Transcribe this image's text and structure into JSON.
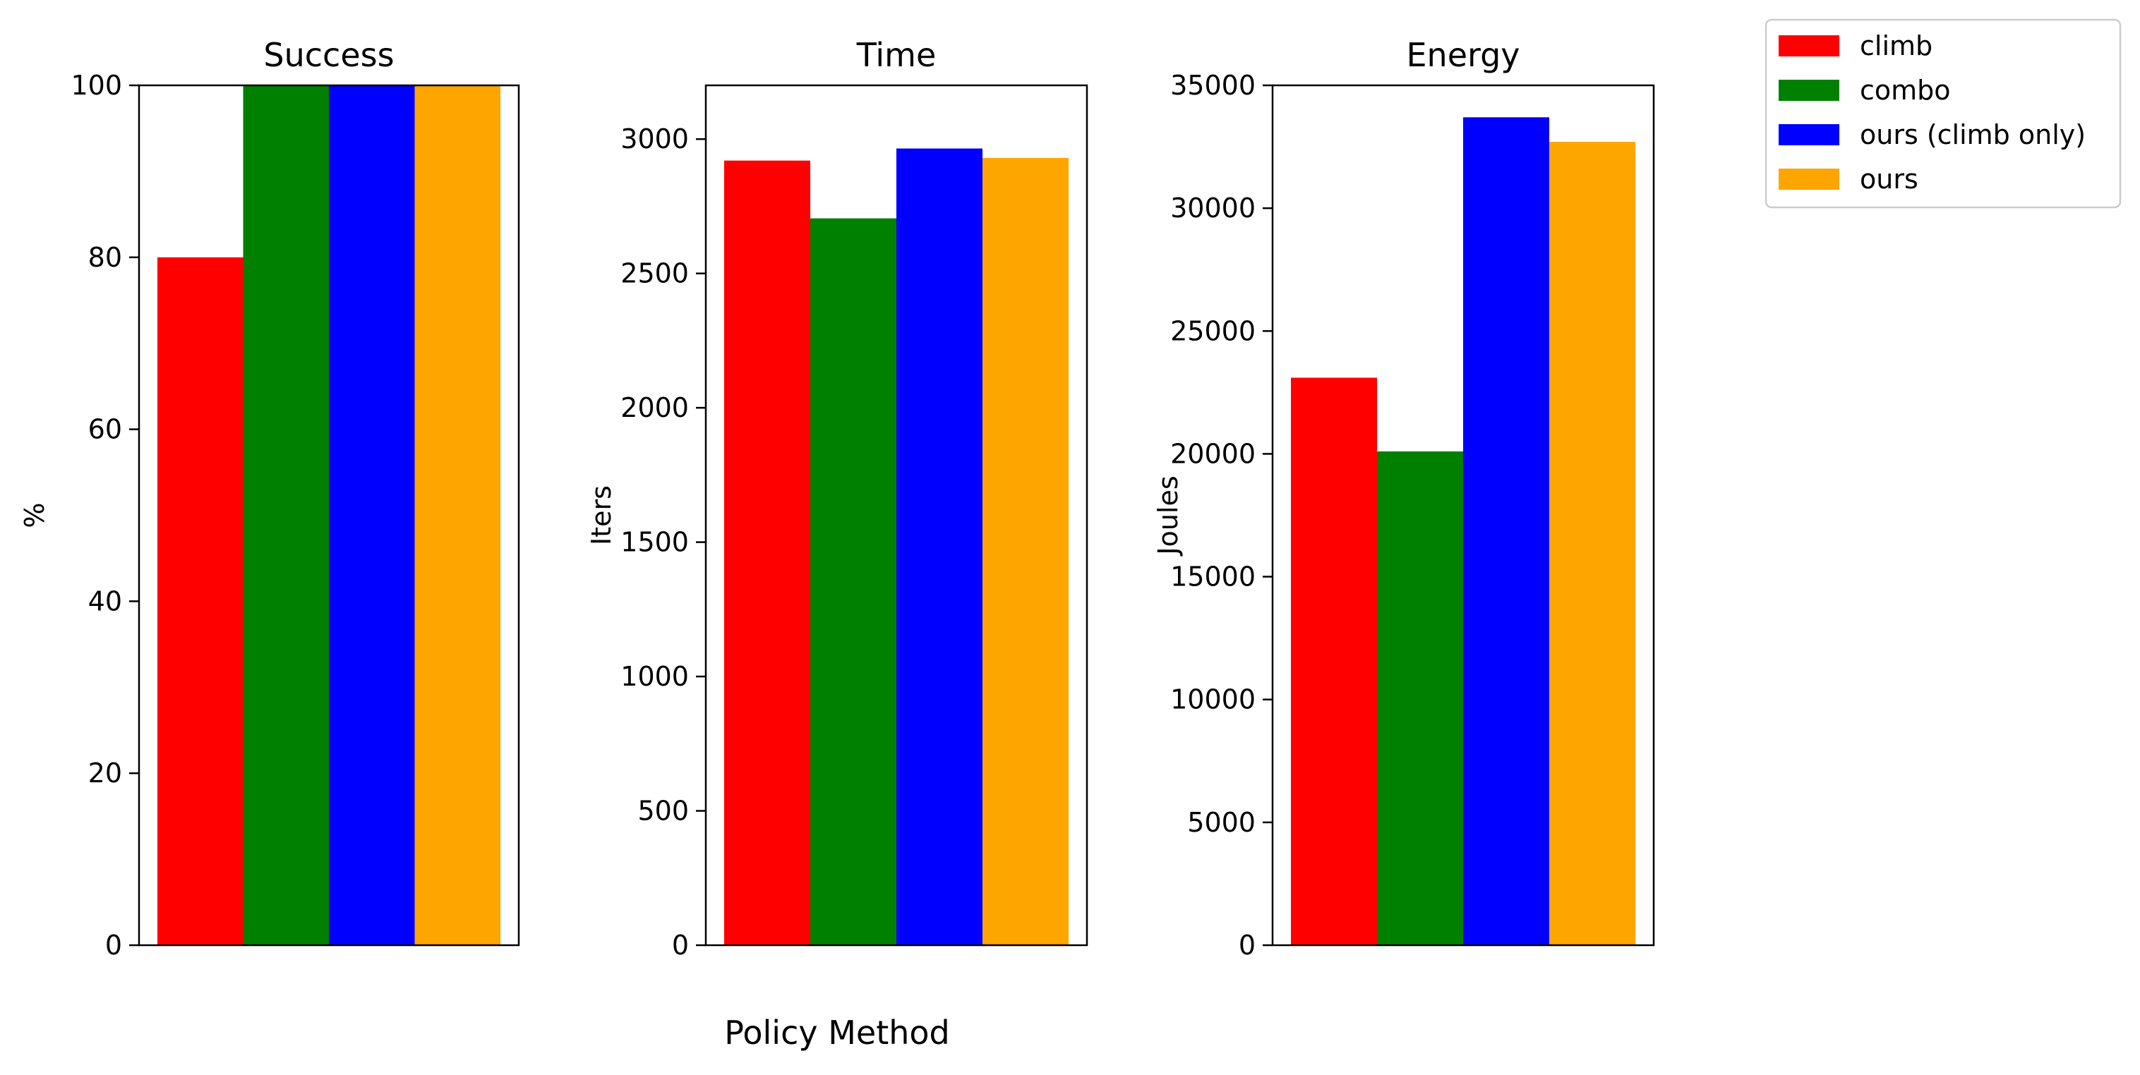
{
  "figure": {
    "xlabel": "Policy Method"
  },
  "legend": {
    "placement": "top-right, outside plots",
    "entries": [
      {
        "label": "climb",
        "color": "#ff0000"
      },
      {
        "label": "combo",
        "color": "#008000"
      },
      {
        "label": "ours (climb only)",
        "color": "#0000ff"
      },
      {
        "label": "ours",
        "color": "#ffa500"
      }
    ]
  },
  "chart_data": [
    {
      "type": "bar",
      "title": "Success",
      "ylabel": "%",
      "ylim": [
        0,
        100
      ],
      "yticks": [
        0,
        20,
        40,
        60,
        80,
        100
      ],
      "grid": false,
      "series": [
        {
          "name": "climb",
          "values": [
            80
          ]
        },
        {
          "name": "combo",
          "values": [
            100
          ]
        },
        {
          "name": "ours (climb only)",
          "values": [
            100
          ]
        },
        {
          "name": "ours",
          "values": [
            100
          ]
        }
      ]
    },
    {
      "type": "bar",
      "title": "Time",
      "ylabel": "Iters",
      "ylim": [
        0,
        3200
      ],
      "yticks": [
        0,
        500,
        1000,
        1500,
        2000,
        2500,
        3000
      ],
      "grid": false,
      "series": [
        {
          "name": "climb",
          "values": [
            2920
          ]
        },
        {
          "name": "combo",
          "values": [
            2705
          ]
        },
        {
          "name": "ours (climb only)",
          "values": [
            2965
          ]
        },
        {
          "name": "ours",
          "values": [
            2930
          ]
        }
      ]
    },
    {
      "type": "bar",
      "title": "Energy",
      "ylabel": "Joules",
      "ylim": [
        0,
        35000
      ],
      "yticks": [
        0,
        5000,
        10000,
        15000,
        20000,
        25000,
        30000,
        35000
      ],
      "grid": false,
      "series": [
        {
          "name": "climb",
          "values": [
            23100
          ]
        },
        {
          "name": "combo",
          "values": [
            20100
          ]
        },
        {
          "name": "ours (climb only)",
          "values": [
            33700
          ]
        },
        {
          "name": "ours",
          "values": [
            32700
          ]
        }
      ]
    }
  ]
}
